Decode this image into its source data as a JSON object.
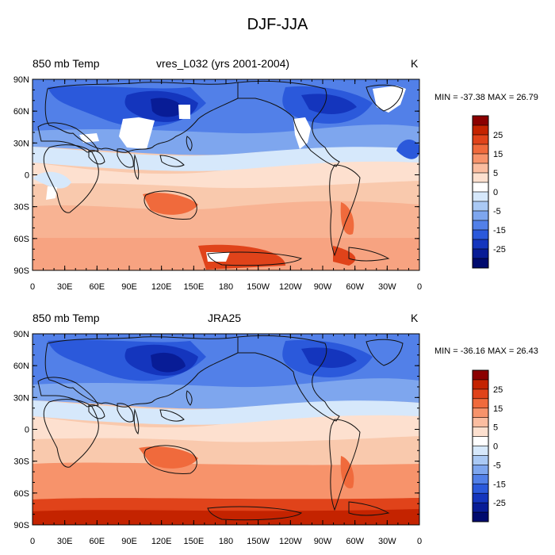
{
  "figure": {
    "title": "DJF-JJA"
  },
  "panels": [
    {
      "left_label": "850 mb Temp",
      "center_label": "vres_L032 (yrs 2001-2004)",
      "right_label": "K",
      "stats": "MIN = -37.38 MAX =  26.79",
      "missing_data_white": true
    },
    {
      "left_label": "850 mb Temp",
      "center_label": "JRA25",
      "right_label": "K",
      "stats": "MIN = -36.16 MAX =  26.43",
      "missing_data_white": false
    }
  ],
  "axes": {
    "x_ticks": [
      "0",
      "30E",
      "60E",
      "90E",
      "120E",
      "150E",
      "180",
      "150W",
      "120W",
      "90W",
      "60W",
      "30W",
      "0"
    ],
    "y_ticks": [
      "90N",
      "60N",
      "30N",
      "0",
      "30S",
      "60S",
      "90S"
    ]
  },
  "colorbar": {
    "labels": [
      "25",
      "15",
      "5",
      "0",
      "-5",
      "-15",
      "-25"
    ],
    "colors": [
      "#8b0000",
      "#c42300",
      "#e0431a",
      "#f06a3c",
      "#f7936b",
      "#fbbda0",
      "#fde0cf",
      "#ffffff",
      "#d6e8fb",
      "#aac9f4",
      "#7ea6ee",
      "#5280e8",
      "#2b59db",
      "#1435bd",
      "#081c96",
      "#000a6e"
    ]
  },
  "colors": {
    "map_bg": "#f9c9ad",
    "coast": "#111111"
  }
}
